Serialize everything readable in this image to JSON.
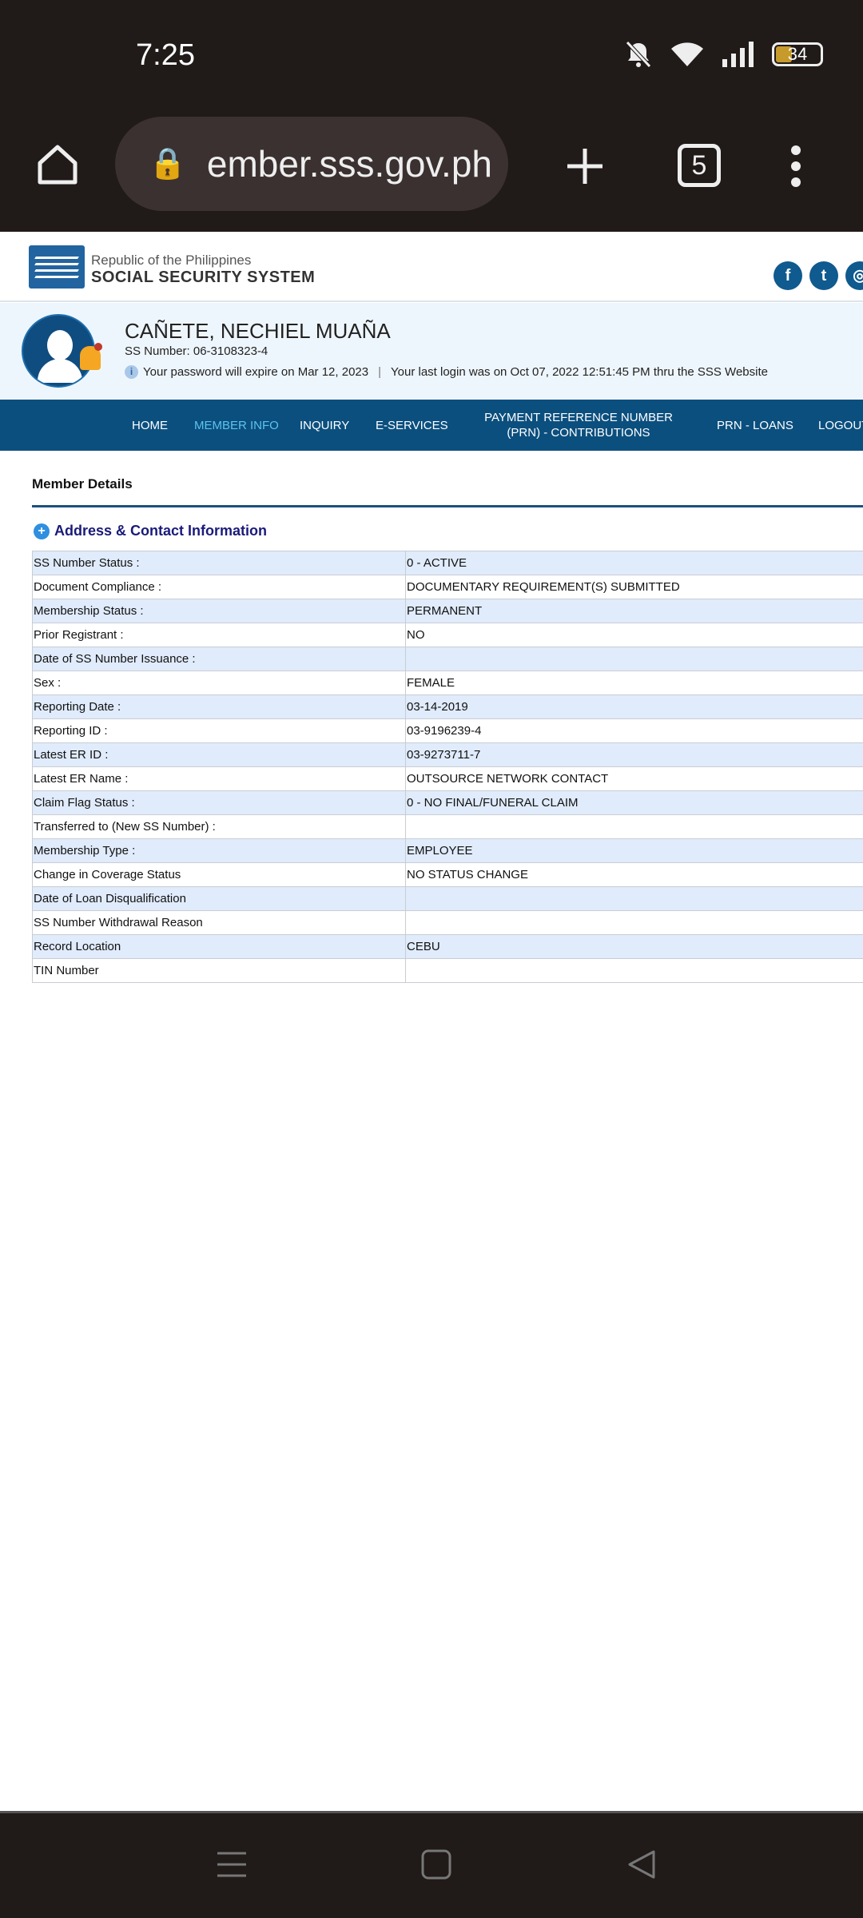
{
  "status_bar": {
    "time": "7:25",
    "battery": "34",
    "icons": [
      "bell-off-icon",
      "wifi-icon",
      "signal-icon",
      "battery-icon"
    ]
  },
  "browser": {
    "url": "member.sss.gov.ph",
    "tab_count": "5",
    "icons": [
      "home-icon",
      "lock-icon",
      "plus-icon",
      "tabs-icon",
      "more-icon"
    ]
  },
  "site": {
    "republic": "Republic of the Philippines",
    "org": "SOCIAL SECURITY SYSTEM",
    "social": [
      {
        "icon": "facebook-icon",
        "glyph": "f"
      },
      {
        "icon": "twitter-icon",
        "glyph": "t"
      },
      {
        "icon": "instagram-icon",
        "glyph": "◎"
      }
    ]
  },
  "profile": {
    "name": "CAÑETE, NECHIEL MUAÑA",
    "ss_number": "SS Number: 06-3108323-4",
    "password_notice": "Your password will expire on Mar 12, 2023",
    "separator": "|",
    "last_login": "Your last login was on Oct 07, 2022 12:51:45 PM thru the SSS Website"
  },
  "nav": {
    "items": [
      "HOME",
      "MEMBER INFO",
      "INQUIRY",
      "E-SERVICES",
      "PAYMENT REFERENCE NUMBER (PRN) - CONTRIBUTIONS",
      "PRN - LOANS",
      "LOGOUT"
    ],
    "active": "MEMBER INFO"
  },
  "main": {
    "title": "Member Details",
    "section": "Address & Contact Information",
    "rows": [
      [
        "SS Number Status :",
        "0 - ACTIVE"
      ],
      [
        "Document Compliance :",
        "DOCUMENTARY REQUIREMENT(S) SUBMITTED"
      ],
      [
        "Membership Status :",
        "PERMANENT"
      ],
      [
        "Prior Registrant :",
        "NO"
      ],
      [
        "Date of SS Number Issuance :",
        ""
      ],
      [
        "Sex :",
        "FEMALE"
      ],
      [
        "Reporting Date :",
        "03-14-2019"
      ],
      [
        "Reporting ID :",
        "03-9196239-4"
      ],
      [
        "Latest ER ID :",
        "03-9273711-7"
      ],
      [
        "Latest ER Name :",
        "OUTSOURCE NETWORK CONTACT"
      ],
      [
        "Claim Flag Status :",
        "0 - NO FINAL/FUNERAL CLAIM"
      ],
      [
        "Transferred to (New SS Number) :",
        ""
      ],
      [
        "Membership Type :",
        "EMPLOYEE"
      ],
      [
        "Change in Coverage Status",
        "NO STATUS CHANGE"
      ],
      [
        "Date of Loan Disqualification",
        ""
      ],
      [
        "SS Number Withdrawal Reason",
        ""
      ],
      [
        "Record Location",
        "CEBU"
      ],
      [
        "TIN Number",
        ""
      ]
    ]
  },
  "system_nav": {
    "icons": [
      "menu-icon",
      "home-square-icon",
      "back-icon"
    ]
  }
}
